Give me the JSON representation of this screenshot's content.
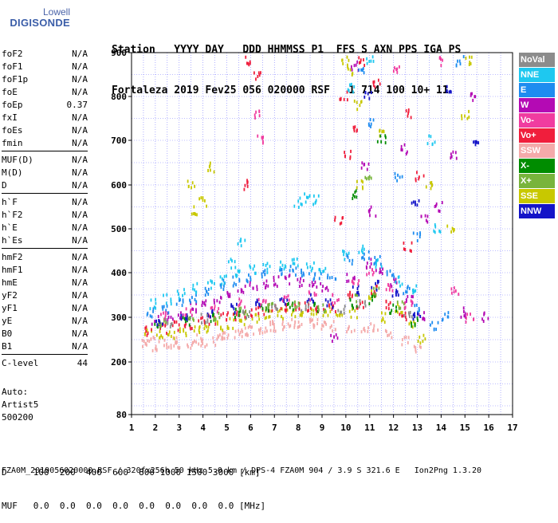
{
  "logo": {
    "line1": "Lowell",
    "line2": "DIGISONDE"
  },
  "header": {
    "line1": "Station   YYYY DAY   DDD HHMMSS P1  FFS S AXN PPS IGA PS",
    "line2": "Fortaleza 2019 Fev25 056 020000 RSF   1 714 100 10+ 11"
  },
  "params": [
    {
      "name": "foF2",
      "value": "N/A"
    },
    {
      "name": "foF1",
      "value": "N/A"
    },
    {
      "name": "foF1p",
      "value": "N/A"
    },
    {
      "name": "foE",
      "value": "N/A"
    },
    {
      "name": "foEp",
      "value": "0.37"
    },
    {
      "name": "fxI",
      "value": "N/A"
    },
    {
      "name": "foEs",
      "value": "N/A"
    },
    {
      "name": "fmin",
      "value": "N/A"
    },
    {
      "sep": true
    },
    {
      "name": "MUF(D)",
      "value": "N/A"
    },
    {
      "name": "M(D)",
      "value": "N/A"
    },
    {
      "name": "D",
      "value": "N/A"
    },
    {
      "sep": true
    },
    {
      "name": "h`F",
      "value": "N/A"
    },
    {
      "name": "h`F2",
      "value": "N/A"
    },
    {
      "name": "h`E",
      "value": "N/A"
    },
    {
      "name": "h`Es",
      "value": "N/A"
    },
    {
      "sep": true
    },
    {
      "name": "hmF2",
      "value": "N/A"
    },
    {
      "name": "hmF1",
      "value": "N/A"
    },
    {
      "name": "hmE",
      "value": "N/A"
    },
    {
      "name": "yF2",
      "value": "N/A"
    },
    {
      "name": "yF1",
      "value": "N/A"
    },
    {
      "name": "yE",
      "value": "N/A"
    },
    {
      "name": "B0",
      "value": "N/A"
    },
    {
      "name": "B1",
      "value": "N/A"
    },
    {
      "sep": true
    },
    {
      "name": "C-level",
      "value": "44"
    }
  ],
  "auto": {
    "line1": "Auto:",
    "line2": "Artist5",
    "line3": "500200"
  },
  "legend": [
    {
      "label": "NoVal",
      "color": "#8c8c8c"
    },
    {
      "label": "NNE",
      "color": "#1ec8f0"
    },
    {
      "label": "E",
      "color": "#1e8cf0"
    },
    {
      "label": "W",
      "color": "#b40ab4"
    },
    {
      "label": "Vo-",
      "color": "#f03ca0"
    },
    {
      "label": "Vo+",
      "color": "#f01e3c"
    },
    {
      "label": "SSW",
      "color": "#f4aaaa"
    },
    {
      "label": "X-",
      "color": "#008c00"
    },
    {
      "label": "X+",
      "color": "#78b43c"
    },
    {
      "label": "SSE",
      "color": "#c8c800"
    },
    {
      "label": "NNW",
      "color": "#1414c8"
    }
  ],
  "bottom": {
    "line1": "D     100  200  400  600  800 1000 1500 3000 [km]",
    "line2": "MUF   0.0  0.0  0.0  0.0  0.0  0.0  0.0  0.0 [MHz]"
  },
  "footer": "FZA0M_2019056020000.RSF / 320fx256h 50 kHz 5.0 km / DPS-4 FZA0M 904 / 3.9 S 321.6 E   Ion2Png 1.3.20",
  "chart_data": {
    "type": "scatter",
    "x_ticks": [
      1,
      2,
      3,
      4,
      5,
      6,
      7,
      8,
      9,
      10,
      11,
      12,
      13,
      14,
      15,
      16,
      17
    ],
    "y_ticks": [
      80,
      200,
      300,
      400,
      500,
      600,
      700,
      800,
      900
    ],
    "xlim": [
      1,
      17
    ],
    "ylim": [
      80,
      900
    ],
    "grid": true,
    "series": [
      {
        "name": "SSW",
        "color": "#f4aaaa",
        "points": [
          [
            1.6,
            240
          ],
          [
            2.0,
            235
          ],
          [
            2.5,
            238
          ],
          [
            3.0,
            236
          ],
          [
            3.5,
            240
          ],
          [
            4.0,
            242
          ],
          [
            4.5,
            248
          ],
          [
            5.0,
            255
          ],
          [
            5.5,
            262
          ],
          [
            6.0,
            270
          ],
          [
            6.5,
            275
          ],
          [
            7.0,
            278
          ],
          [
            7.5,
            282
          ],
          [
            8.0,
            280
          ],
          [
            8.5,
            285
          ],
          [
            9.0,
            283
          ],
          [
            9.5,
            280
          ],
          [
            10.2,
            270
          ],
          [
            10.8,
            275
          ],
          [
            11.2,
            280
          ],
          [
            11.8,
            265
          ],
          [
            12.5,
            245
          ],
          [
            13.0,
            230
          ],
          [
            1.8,
            250
          ],
          [
            2.8,
            245
          ],
          [
            3.8,
            250
          ],
          [
            4.8,
            260
          ],
          [
            5.8,
            272
          ],
          [
            6.8,
            280
          ],
          [
            7.8,
            285
          ],
          [
            8.8,
            285
          ]
        ]
      },
      {
        "name": "SSE",
        "color": "#c8c800",
        "points": [
          [
            1.7,
            265
          ],
          [
            2.2,
            260
          ],
          [
            2.7,
            262
          ],
          [
            3.2,
            268
          ],
          [
            3.7,
            272
          ],
          [
            4.2,
            276
          ],
          [
            4.7,
            280
          ],
          [
            5.2,
            286
          ],
          [
            5.7,
            292
          ],
          [
            6.2,
            300
          ],
          [
            6.7,
            305
          ],
          [
            7.2,
            308
          ],
          [
            7.7,
            310
          ],
          [
            8.2,
            312
          ],
          [
            8.7,
            315
          ],
          [
            9.2,
            312
          ],
          [
            9.7,
            300
          ],
          [
            10.3,
            310
          ],
          [
            10.6,
            600
          ],
          [
            10.2,
            860
          ],
          [
            11.1,
            350
          ],
          [
            11.6,
            300
          ],
          [
            12.2,
            320
          ],
          [
            12.8,
            280
          ],
          [
            13.2,
            250
          ],
          [
            13.5,
            600
          ],
          [
            14.4,
            500
          ],
          [
            15.2,
            880
          ],
          [
            15.0,
            760
          ],
          [
            11.5,
            720
          ],
          [
            3.7,
            540
          ],
          [
            4.0,
            560
          ],
          [
            3.5,
            600
          ],
          [
            4.3,
            640
          ],
          [
            10.0,
            880
          ],
          [
            10.5,
            780
          ]
        ]
      },
      {
        "name": "Vo+",
        "color": "#f01e3c",
        "points": [
          [
            1.7,
            270
          ],
          [
            2.3,
            275
          ],
          [
            2.9,
            280
          ],
          [
            3.4,
            285
          ],
          [
            3.9,
            290
          ],
          [
            4.4,
            295
          ],
          [
            4.9,
            300
          ],
          [
            5.4,
            305
          ],
          [
            5.9,
            310
          ],
          [
            6.4,
            315
          ],
          [
            6.9,
            320
          ],
          [
            7.4,
            322
          ],
          [
            7.9,
            325
          ],
          [
            8.4,
            325
          ],
          [
            8.9,
            322
          ],
          [
            9.4,
            318
          ],
          [
            10.1,
            350
          ],
          [
            10.6,
            330
          ],
          [
            11.2,
            360
          ],
          [
            11.7,
            330
          ],
          [
            12.4,
            300
          ],
          [
            10.1,
            670
          ],
          [
            10.3,
            720
          ],
          [
            11.3,
            830
          ],
          [
            12.7,
            760
          ],
          [
            13.1,
            620
          ],
          [
            10.7,
            880
          ],
          [
            9.9,
            800
          ],
          [
            9.7,
            520
          ],
          [
            12.6,
            460
          ],
          [
            5.9,
            880
          ],
          [
            6.3,
            850
          ],
          [
            5.9,
            600
          ]
        ]
      },
      {
        "name": "W",
        "color": "#b40ab4",
        "points": [
          [
            2.0,
            295
          ],
          [
            2.6,
            300
          ],
          [
            3.1,
            305
          ],
          [
            3.6,
            320
          ],
          [
            4.1,
            330
          ],
          [
            4.6,
            340
          ],
          [
            5.1,
            355
          ],
          [
            5.6,
            360
          ],
          [
            6.1,
            370
          ],
          [
            6.6,
            375
          ],
          [
            7.1,
            380
          ],
          [
            7.6,
            385
          ],
          [
            8.1,
            380
          ],
          [
            8.6,
            378
          ],
          [
            9.1,
            370
          ],
          [
            10.2,
            390
          ],
          [
            10.9,
            420
          ],
          [
            11.4,
            400
          ],
          [
            12.0,
            380
          ],
          [
            12.7,
            340
          ],
          [
            13.2,
            300
          ],
          [
            13.9,
            550
          ],
          [
            14.5,
            670
          ],
          [
            15.3,
            800
          ],
          [
            10.4,
            870
          ],
          [
            12.4,
            680
          ],
          [
            13.3,
            520
          ],
          [
            10.8,
            640
          ],
          [
            11.1,
            540
          ],
          [
            9.5,
            250
          ],
          [
            14.9,
            310
          ],
          [
            15.9,
            300
          ]
        ]
      },
      {
        "name": "E",
        "color": "#1e8cf0",
        "points": [
          [
            1.8,
            310
          ],
          [
            2.4,
            320
          ],
          [
            3.0,
            330
          ],
          [
            3.6,
            345
          ],
          [
            4.2,
            360
          ],
          [
            4.8,
            372
          ],
          [
            5.4,
            380
          ],
          [
            6.0,
            390
          ],
          [
            6.6,
            395
          ],
          [
            7.2,
            400
          ],
          [
            7.8,
            405
          ],
          [
            8.3,
            400
          ],
          [
            8.8,
            395
          ],
          [
            9.4,
            390
          ],
          [
            10.2,
            430
          ],
          [
            10.8,
            440
          ],
          [
            11.3,
            430
          ],
          [
            11.9,
            400
          ],
          [
            12.5,
            360
          ],
          [
            13.0,
            320
          ],
          [
            13.7,
            280
          ],
          [
            14.2,
            300
          ],
          [
            10.6,
            860
          ],
          [
            11.0,
            740
          ],
          [
            12.2,
            620
          ],
          [
            13.0,
            480
          ],
          [
            14.8,
            880
          ]
        ]
      },
      {
        "name": "NNE",
        "color": "#1ec8f0",
        "points": [
          [
            1.9,
            330
          ],
          [
            2.5,
            340
          ],
          [
            3.1,
            352
          ],
          [
            3.7,
            365
          ],
          [
            4.3,
            375
          ],
          [
            4.9,
            385
          ],
          [
            5.5,
            395
          ],
          [
            6.1,
            405
          ],
          [
            6.7,
            410
          ],
          [
            7.3,
            415
          ],
          [
            7.9,
            420
          ],
          [
            8.5,
            415
          ],
          [
            9.0,
            405
          ],
          [
            10.0,
            440
          ],
          [
            10.7,
            450
          ],
          [
            11.4,
            420
          ],
          [
            12.2,
            380
          ],
          [
            12.8,
            360
          ],
          [
            8.0,
            560
          ],
          [
            8.4,
            570
          ],
          [
            8.8,
            565
          ],
          [
            5.2,
            420
          ],
          [
            5.6,
            470
          ],
          [
            10.2,
            820
          ],
          [
            11.0,
            880
          ],
          [
            13.8,
            500
          ],
          [
            13.6,
            700
          ]
        ]
      },
      {
        "name": "X-",
        "color": "#008c00",
        "points": [
          [
            2.1,
            280
          ],
          [
            3.3,
            290
          ],
          [
            4.4,
            300
          ],
          [
            5.5,
            310
          ],
          [
            6.6,
            318
          ],
          [
            7.7,
            322
          ],
          [
            8.8,
            322
          ],
          [
            10.3,
            330
          ],
          [
            11.1,
            340
          ],
          [
            12.0,
            320
          ],
          [
            12.9,
            290
          ],
          [
            11.5,
            700
          ],
          [
            10.4,
            580
          ]
        ]
      },
      {
        "name": "X+",
        "color": "#78b43c",
        "points": [
          [
            2.3,
            285
          ],
          [
            3.5,
            295
          ],
          [
            4.6,
            305
          ],
          [
            5.7,
            312
          ],
          [
            6.8,
            322
          ],
          [
            7.9,
            326
          ],
          [
            9.0,
            320
          ],
          [
            10.5,
            345
          ],
          [
            11.3,
            360
          ],
          [
            12.3,
            330
          ],
          [
            10.9,
            620
          ]
        ]
      },
      {
        "name": "NNW",
        "color": "#1414c8",
        "points": [
          [
            2.2,
            290
          ],
          [
            3.2,
            298
          ],
          [
            4.3,
            310
          ],
          [
            5.3,
            320
          ],
          [
            6.3,
            328
          ],
          [
            7.4,
            336
          ],
          [
            8.5,
            340
          ],
          [
            9.3,
            330
          ],
          [
            10.4,
            360
          ],
          [
            11.2,
            370
          ],
          [
            12.1,
            350
          ],
          [
            13.0,
            300
          ],
          [
            14.3,
            820
          ],
          [
            15.5,
            690
          ],
          [
            12.9,
            560
          ],
          [
            10.9,
            800
          ]
        ]
      },
      {
        "name": "Vo-",
        "color": "#f03ca0",
        "points": [
          [
            2.4,
            305
          ],
          [
            3.4,
            312
          ],
          [
            4.5,
            322
          ],
          [
            5.6,
            330
          ],
          [
            6.5,
            338
          ],
          [
            7.5,
            345
          ],
          [
            8.6,
            348
          ],
          [
            9.6,
            340
          ],
          [
            10.4,
            380
          ],
          [
            11.0,
            400
          ],
          [
            11.8,
            370
          ],
          [
            12.6,
            330
          ],
          [
            14.6,
            360
          ],
          [
            15.2,
            300
          ],
          [
            6.4,
            700
          ],
          [
            6.2,
            760
          ],
          [
            12.1,
            860
          ],
          [
            14.1,
            880
          ]
        ]
      },
      {
        "name": "NoVal",
        "color": "#8c8c8c",
        "points": [
          [
            2.6,
            288
          ],
          [
            4.1,
            298
          ],
          [
            5.8,
            308
          ],
          [
            7.0,
            318
          ],
          [
            8.3,
            322
          ],
          [
            9.8,
            318
          ],
          [
            10.7,
            330
          ],
          [
            12.6,
            310
          ]
        ]
      }
    ]
  }
}
